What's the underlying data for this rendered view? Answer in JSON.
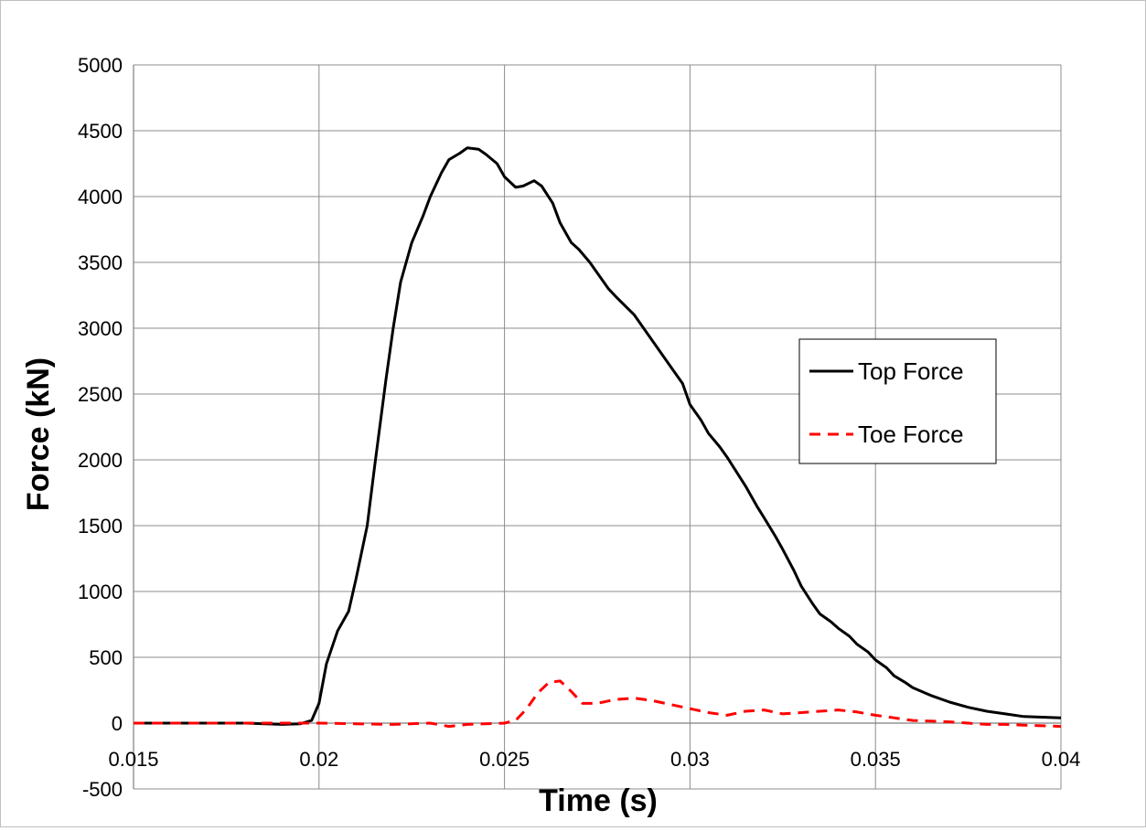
{
  "chart_data": {
    "type": "line",
    "title": "",
    "xlabel": "Time (s)",
    "ylabel": "Force (kN)",
    "xlim": [
      0.015,
      0.04
    ],
    "ylim": [
      -500,
      5000
    ],
    "xticks": [
      "0.015",
      "0.02",
      "0.025",
      "0.03",
      "0.035",
      "0.04"
    ],
    "yticks": [
      "-500",
      "0",
      "500",
      "1000",
      "1500",
      "2000",
      "2500",
      "3000",
      "3500",
      "4000",
      "4500",
      "5000"
    ],
    "grid": true,
    "legend_position": "right",
    "series": [
      {
        "name": "Top Force",
        "color": "#000000",
        "dash": "solid",
        "x": [
          0.015,
          0.016,
          0.017,
          0.018,
          0.019,
          0.0195,
          0.0198,
          0.02,
          0.0202,
          0.0205,
          0.0208,
          0.021,
          0.0213,
          0.0215,
          0.0218,
          0.022,
          0.0222,
          0.0225,
          0.0228,
          0.023,
          0.0233,
          0.0235,
          0.0238,
          0.024,
          0.0243,
          0.0245,
          0.0248,
          0.025,
          0.0253,
          0.0255,
          0.0258,
          0.026,
          0.0263,
          0.0265,
          0.0268,
          0.027,
          0.0273,
          0.0275,
          0.0278,
          0.028,
          0.0285,
          0.029,
          0.0293,
          0.0295,
          0.0298,
          0.03,
          0.0303,
          0.0305,
          0.0308,
          0.031,
          0.0315,
          0.0318,
          0.032,
          0.0323,
          0.0325,
          0.0328,
          0.033,
          0.0333,
          0.0335,
          0.0338,
          0.034,
          0.0343,
          0.0345,
          0.0348,
          0.035,
          0.0353,
          0.0355,
          0.0358,
          0.036,
          0.0365,
          0.037,
          0.0375,
          0.038,
          0.0385,
          0.039,
          0.0395,
          0.04
        ],
        "y": [
          0,
          0,
          0,
          0,
          -10,
          -5,
          20,
          150,
          450,
          700,
          850,
          1100,
          1500,
          1950,
          2600,
          3000,
          3350,
          3650,
          3850,
          4000,
          4180,
          4280,
          4330,
          4370,
          4360,
          4320,
          4250,
          4150,
          4070,
          4080,
          4120,
          4080,
          3950,
          3800,
          3650,
          3600,
          3500,
          3420,
          3300,
          3240,
          3100,
          2900,
          2780,
          2700,
          2580,
          2420,
          2300,
          2200,
          2100,
          2020,
          1800,
          1650,
          1560,
          1420,
          1320,
          1160,
          1040,
          910,
          830,
          770,
          720,
          660,
          600,
          540,
          480,
          420,
          360,
          310,
          270,
          210,
          160,
          120,
          90,
          70,
          50,
          45,
          40
        ]
      },
      {
        "name": "Toe Force",
        "color": "#ff0000",
        "dash": "dashed",
        "x": [
          0.015,
          0.016,
          0.017,
          0.018,
          0.019,
          0.02,
          0.021,
          0.022,
          0.023,
          0.0235,
          0.024,
          0.025,
          0.0253,
          0.0256,
          0.0259,
          0.0262,
          0.0265,
          0.0268,
          0.0271,
          0.0275,
          0.028,
          0.0285,
          0.029,
          0.0295,
          0.03,
          0.0305,
          0.031,
          0.0315,
          0.032,
          0.0325,
          0.033,
          0.0335,
          0.034,
          0.0345,
          0.035,
          0.0355,
          0.036,
          0.0365,
          0.037,
          0.0375,
          0.038,
          0.0385,
          0.039,
          0.0395,
          0.04
        ],
        "y": [
          0,
          0,
          0,
          0,
          0,
          0,
          -5,
          -10,
          0,
          -25,
          -10,
          0,
          20,
          110,
          230,
          310,
          320,
          240,
          150,
          150,
          180,
          190,
          170,
          140,
          110,
          80,
          60,
          90,
          100,
          70,
          80,
          90,
          100,
          85,
          60,
          40,
          20,
          15,
          10,
          0,
          -10,
          -10,
          -15,
          -20,
          -25
        ]
      }
    ]
  }
}
